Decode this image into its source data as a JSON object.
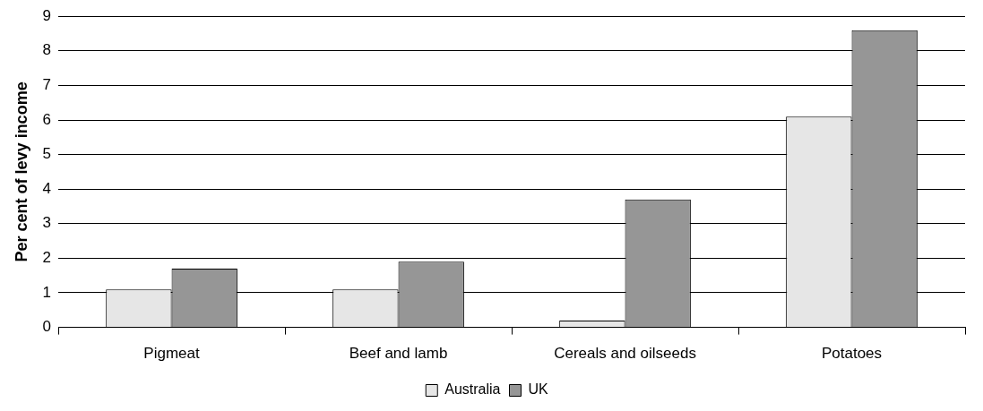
{
  "chart_data": {
    "type": "bar",
    "ylabel": "Per cent of levy income",
    "categories": [
      "Pigmeat",
      "Beef and lamb",
      "Cereals and oilseeds",
      "Potatoes"
    ],
    "series": [
      {
        "name": "Australia",
        "color": "#e6e6e6",
        "values": [
          1.1,
          1.1,
          0.2,
          6.1
        ]
      },
      {
        "name": "UK",
        "color": "#969696",
        "values": [
          1.7,
          1.9,
          3.7,
          8.6
        ]
      }
    ],
    "ylim": [
      0,
      9
    ],
    "yticks": [
      0,
      1,
      2,
      3,
      4,
      5,
      6,
      7,
      8,
      9
    ],
    "grid": "y",
    "legend": "bottom"
  }
}
